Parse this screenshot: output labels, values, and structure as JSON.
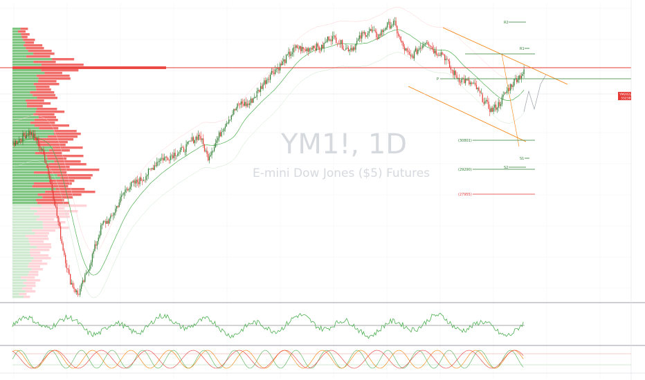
{
  "symbol": "YM1!, 1D",
  "description": "E-mini Dow Jones ($5) Futures",
  "levels": [
    {
      "key": "R2",
      "label": "R2",
      "color": "#2e7d32"
    },
    {
      "key": "R1",
      "label": "R1",
      "color": "#2e7d32"
    },
    {
      "key": "P",
      "label": "P",
      "color": "#2e7d32"
    },
    {
      "key": "S1",
      "label": "S1",
      "color": "#2e7d32"
    },
    {
      "key": "S2",
      "label": "S2",
      "color": "#2e7d32"
    },
    {
      "key": "L30801",
      "label": "(30801)",
      "color": "#2e7d32"
    },
    {
      "key": "L29290",
      "label": "(29290)",
      "color": "#2e7d32"
    },
    {
      "key": "L27955",
      "label": "(27955)",
      "color": "#e53935"
    }
  ],
  "price_tag": {
    "value": "YM2022",
    "sub": "33238",
    "color": "#e53935"
  },
  "colors": {
    "up": "#2e7d32",
    "down": "#e53935",
    "channel": "#f57c00",
    "hline": "#e53935",
    "poc": "#e53935",
    "ma": "#4caf50"
  },
  "chart_data": {
    "type": "candlestick",
    "title": "YM1!, 1D",
    "subtitle": "E-mini Dow Jones ($5) Futures",
    "series": [
      {
        "name": "price",
        "values": [
          28500,
          28900,
          29300,
          28700,
          27500,
          25000,
          22000,
          19500,
          18500,
          19800,
          21500,
          23200,
          23500,
          24600,
          25600,
          25900,
          26200,
          26800,
          27500,
          27600,
          27900,
          28100,
          28700,
          29100,
          27600,
          28600,
          29700,
          30500,
          31200,
          31100,
          31800,
          32600,
          33300,
          33700,
          34400,
          34900,
          34700,
          35000,
          34800,
          35600,
          35400,
          34800,
          34900,
          35700,
          36000,
          35600,
          36300,
          36500,
          35000,
          34200,
          34800,
          35400,
          34600,
          34500,
          33400,
          32800,
          32600,
          32300,
          31400,
          30700,
          31200,
          32100,
          32800,
          33238
        ]
      }
    ]
  }
}
